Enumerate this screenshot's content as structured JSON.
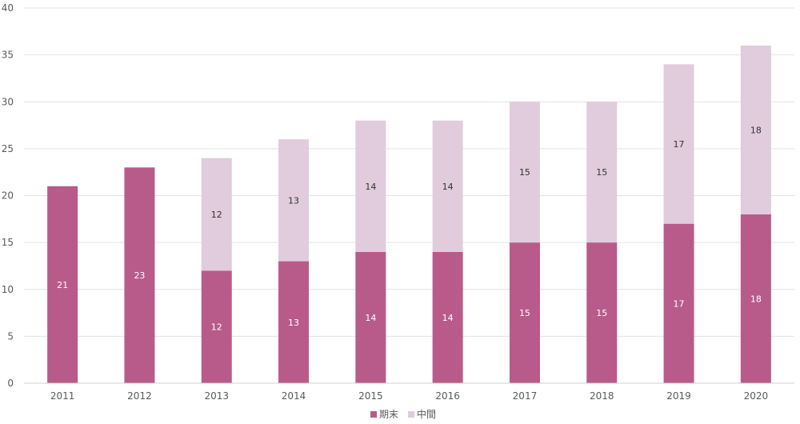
{
  "chart_data": {
    "type": "bar",
    "stacked": true,
    "categories": [
      "2011",
      "2012",
      "2013",
      "2014",
      "2015",
      "2016",
      "2017",
      "2018",
      "2019",
      "2020"
    ],
    "series": [
      {
        "name": "期末",
        "color": "#b85b8a",
        "label_color": "#ffffff",
        "values": [
          21,
          23,
          12,
          13,
          14,
          14,
          15,
          15,
          17,
          18
        ]
      },
      {
        "name": "中間",
        "color": "#e0ccdc",
        "label_color": "#333333",
        "values": [
          null,
          null,
          12,
          13,
          14,
          14,
          15,
          15,
          17,
          18
        ]
      }
    ],
    "ylim": [
      0,
      40
    ],
    "yticks": [
      0,
      5,
      10,
      15,
      20,
      25,
      30,
      35,
      40
    ],
    "grid": true,
    "legend_position": "bottom",
    "title": "",
    "xlabel": "",
    "ylabel": ""
  }
}
